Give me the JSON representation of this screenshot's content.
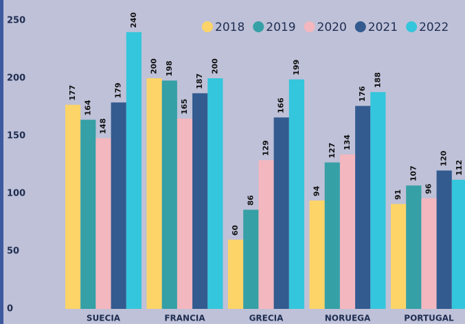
{
  "chart_data": {
    "type": "bar",
    "categories": [
      "SUECIA",
      "FRANCIA",
      "GRECIA",
      "NORUEGA",
      "PORTUGAL"
    ],
    "series": [
      {
        "name": "2018",
        "color": "#fdd468",
        "values": [
          177,
          200,
          60,
          94,
          91
        ]
      },
      {
        "name": "2019",
        "color": "#35a0a5",
        "values": [
          164,
          198,
          86,
          127,
          107
        ]
      },
      {
        "name": "2020",
        "color": "#f3b7bf",
        "values": [
          148,
          165,
          129,
          134,
          96
        ]
      },
      {
        "name": "2021",
        "color": "#335b8f",
        "values": [
          179,
          187,
          166,
          176,
          120
        ]
      },
      {
        "name": "2022",
        "color": "#34c6dc",
        "values": [
          240,
          200,
          199,
          188,
          112
        ]
      }
    ],
    "ylim": [
      0,
      250
    ],
    "yticks": [
      0,
      50,
      100,
      150,
      200,
      250
    ],
    "grid": false,
    "legend": "top-right"
  }
}
